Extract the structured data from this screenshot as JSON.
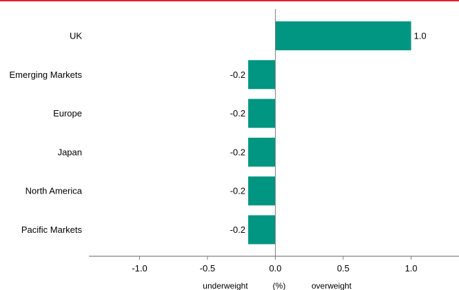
{
  "colors": {
    "accent_rule": "#e4202e",
    "bar": "#009682",
    "axis": "#808080",
    "text": "#000000"
  },
  "chart_data": {
    "type": "bar",
    "orientation": "horizontal",
    "categories": [
      "UK",
      "Emerging Markets",
      "Europe",
      "Japan",
      "North America",
      "Pacific Markets"
    ],
    "values": [
      1.0,
      -0.2,
      -0.2,
      -0.2,
      -0.2,
      -0.2
    ],
    "data_labels": [
      "1.0",
      "-0.2",
      "-0.2",
      "-0.2",
      "-0.2",
      "-0.2"
    ],
    "xlim": [
      -1.4,
      1.4
    ],
    "x_ticks": [
      -1.0,
      -0.5,
      0.0,
      0.5,
      1.0
    ],
    "x_tick_labels": [
      "-1.0",
      "-0.5",
      "0.0",
      "0.5",
      "1.0"
    ],
    "axis_captions": {
      "left": "underweight",
      "center": "(%)",
      "right": "overweight"
    },
    "grid": false,
    "legend": "none"
  }
}
